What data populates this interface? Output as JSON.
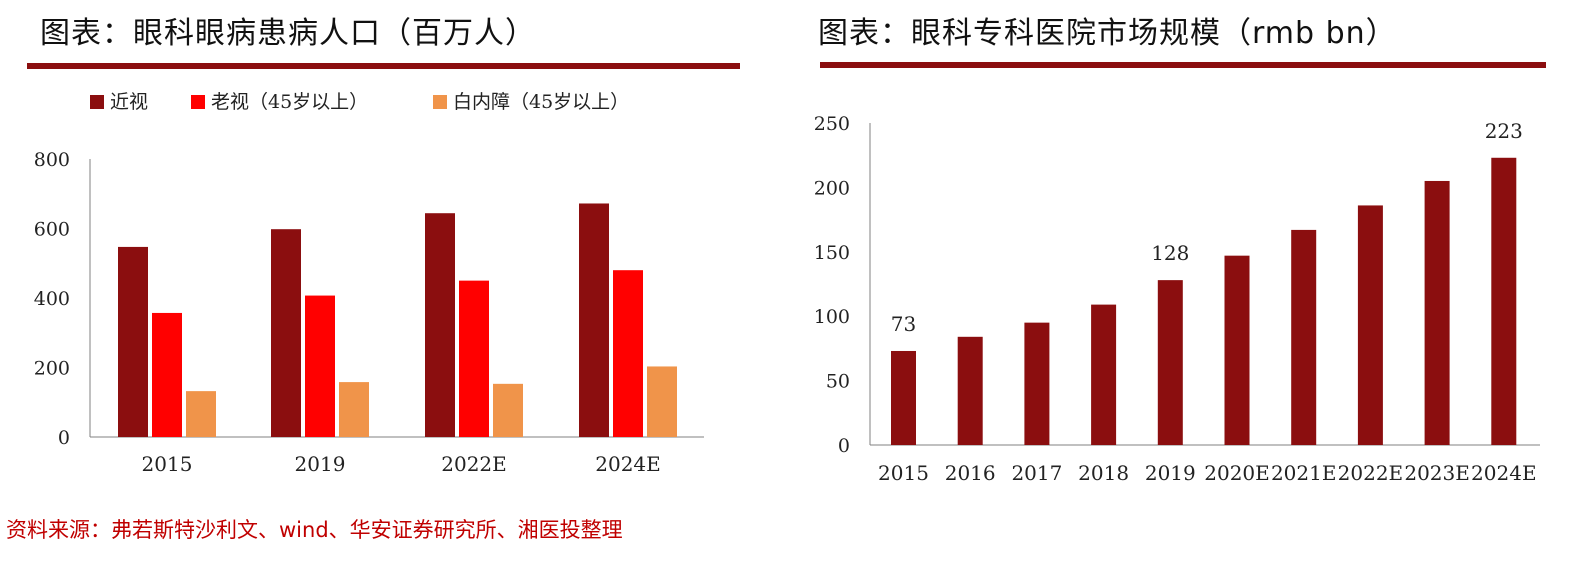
{
  "titles": {
    "left": "图表：眼科眼病患病人口（百万人）",
    "right": "图表：眼科专科医院市场规模（rmb bn）"
  },
  "source": "资料来源：弗若斯特沙利文、wind、华安证券研究所、湘医投整理",
  "colors": {
    "rule": "#8b0e0f",
    "myopia": "#8b0e0f",
    "presbyopia": "#ff0000",
    "cataract": "#f0944a",
    "market": "#8b0e0f",
    "axis": "#808080"
  },
  "chart_data": [
    {
      "type": "bar",
      "title": "图表：眼科眼病患病人口（百万人）",
      "categories": [
        "2015",
        "2019",
        "2022E",
        "2024E"
      ],
      "series": [
        {
          "name": "近视",
          "values": [
            547,
            598,
            644,
            672
          ]
        },
        {
          "name": "老视（45岁以上）",
          "values": [
            357,
            407,
            450,
            480
          ]
        },
        {
          "name": "白内障（45岁以上）",
          "values": [
            132,
            158,
            153,
            203
          ]
        }
      ],
      "yticks": [
        0,
        200,
        400,
        600,
        800
      ],
      "ylim": [
        0,
        800
      ],
      "legend": "top",
      "xlabel": "",
      "ylabel": ""
    },
    {
      "type": "bar",
      "title": "图表：眼科专科医院市场规模（rmb bn）",
      "categories": [
        "2015",
        "2016",
        "2017",
        "2018",
        "2019",
        "2020E",
        "2021E",
        "2022E",
        "2023E",
        "2024E"
      ],
      "values": [
        73,
        84,
        95,
        109,
        128,
        147,
        167,
        186,
        205,
        223
      ],
      "data_labels": {
        "2015": "73",
        "2019": "128",
        "2024E": "223"
      },
      "yticks": [
        0,
        50,
        100,
        150,
        200,
        250
      ],
      "ylim": [
        0,
        250
      ],
      "xlabel": "",
      "ylabel": ""
    }
  ]
}
